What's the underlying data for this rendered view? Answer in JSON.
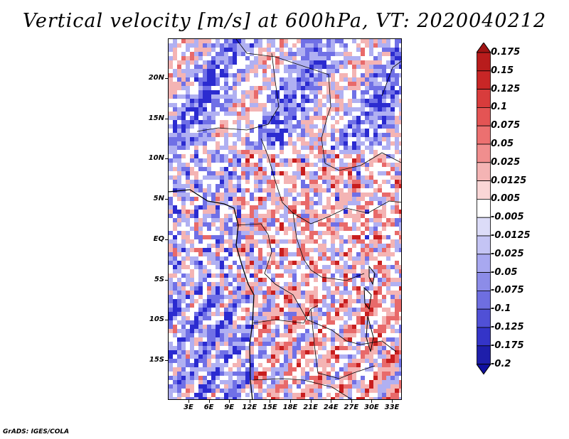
{
  "title": "Vertical velocity [m/s] at 600hPa, VT: 2020040212",
  "credit": "GrADS: IGES/COLA",
  "map": {
    "lat_labels": [
      "20N",
      "15N",
      "10N",
      "5N",
      "EQ",
      "5S",
      "10S",
      "15S"
    ],
    "lon_labels": [
      "3E",
      "6E",
      "9E",
      "12E",
      "15E",
      "18E",
      "21E",
      "24E",
      "27E",
      "30E",
      "33E"
    ],
    "field_palette": {
      "neg_strong": "#2b2bd0",
      "neg_mid": "#7070e6",
      "neg_light": "#b0b0f2",
      "near_zero": "#ffffff",
      "pos_light": "#f4b4b4",
      "pos_mid": "#e86a6a",
      "pos_strong": "#c81e1e"
    }
  },
  "legend": {
    "levels": [
      "0.175",
      "0.15",
      "0.125",
      "0.1",
      "0.075",
      "0.05",
      "0.025",
      "0.0125",
      "0.005",
      "-0.005",
      "-0.0125",
      "-0.025",
      "-0.05",
      "-0.075",
      "-0.1",
      "-0.125",
      "-0.175",
      "-0.2"
    ],
    "colors": [
      "#a01414",
      "#b81c1c",
      "#c82626",
      "#d83c3c",
      "#e45454",
      "#ec7070",
      "#f08e8e",
      "#f4b4b4",
      "#fad6d6",
      "#ffffff",
      "#dcdcf8",
      "#c4c4f4",
      "#a8a8f0",
      "#8c8ce8",
      "#6e6ee0",
      "#5050d6",
      "#3434c8",
      "#1e1eaa",
      "#1010a0"
    ]
  }
}
